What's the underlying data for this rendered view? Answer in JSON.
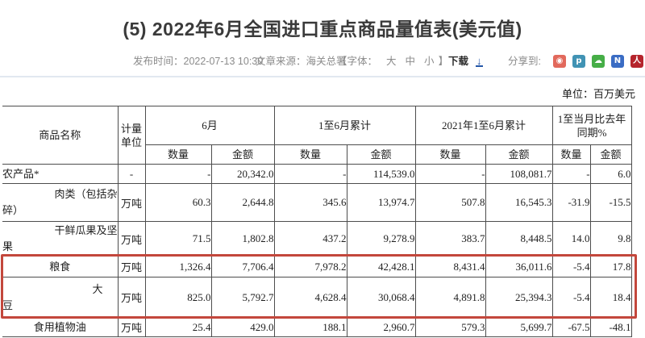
{
  "page": {
    "title": "(5) 2022年6月全国进口重点商品量值表(美元值)",
    "unit_note": "单位：百万美元"
  },
  "meta": {
    "publish": "发布时间：2022-07-13 10:30",
    "source": "文章来源：海关总署",
    "font_open": "【字体：",
    "font_sizes": [
      "大",
      "中",
      "小"
    ],
    "font_close": "】",
    "download": "下载",
    "download_icon": "↓",
    "share_label": "分享到:"
  },
  "share_icons": [
    {
      "name": "sina-weibo-icon",
      "bg": "#e2695c",
      "glyph": "◉"
    },
    {
      "name": "tencent-weibo-icon",
      "bg": "#4193b4",
      "glyph": "p"
    },
    {
      "name": "wechat-icon",
      "bg": "#46ae47",
      "glyph": "☁"
    },
    {
      "name": "qzone-icon",
      "bg": "#3a6cc4",
      "glyph": "N"
    },
    {
      "name": "renren-icon",
      "bg": "#b5242c",
      "glyph": "人"
    }
  ],
  "table": {
    "col_commodity": "商品名称",
    "col_unit": "计量单位",
    "groups": [
      "6月",
      "1至6月累计",
      "2021年1至6月累计",
      "1至当月比去年同期%"
    ],
    "sub": [
      "数量",
      "金额"
    ],
    "rows": [
      {
        "name_lines": [
          "农产品*"
        ],
        "name_align": "left",
        "unit": "-",
        "cells": [
          "-",
          "20,342.0",
          "-",
          "114,539.0",
          "-",
          "108,081.7",
          "-",
          "6.0"
        ],
        "highlight": false
      },
      {
        "name_lines": [
          "肉类（包括杂",
          "碎）"
        ],
        "name_align": "right",
        "unit": "万吨",
        "cells": [
          "60.3",
          "2,644.8",
          "345.6",
          "13,974.7",
          "507.8",
          "16,545.3",
          "-31.9",
          "-15.5"
        ],
        "highlight": false
      },
      {
        "name_lines": [
          "干鲜瓜果及坚",
          "果"
        ],
        "name_align": "right",
        "unit": "万吨",
        "cells": [
          "71.5",
          "1,802.8",
          "437.2",
          "9,278.9",
          "383.7",
          "8,448.5",
          "14.0",
          "9.8"
        ],
        "highlight": false
      },
      {
        "name_lines": [
          "粮食"
        ],
        "name_align": "center",
        "unit": "万吨",
        "cells": [
          "1,326.4",
          "7,706.4",
          "7,978.2",
          "42,428.1",
          "8,431.4",
          "36,011.6",
          "-5.4",
          "17.8"
        ],
        "highlight": true
      },
      {
        "name_lines": [
          "大",
          "豆"
        ],
        "name_align": "right",
        "name_pad": 18,
        "unit": "万吨",
        "cells": [
          "825.0",
          "5,792.7",
          "4,628.4",
          "30,068.4",
          "4,891.8",
          "25,394.3",
          "-5.4",
          "18.4"
        ],
        "highlight": true
      },
      {
        "name_lines": [
          "食用植物油"
        ],
        "name_align": "center",
        "unit": "万吨",
        "cells": [
          "25.4",
          "429.0",
          "188.1",
          "2,960.7",
          "579.3",
          "5,699.7",
          "-67.5",
          "-48.1"
        ],
        "highlight": false
      }
    ]
  },
  "colors": {
    "highlight_border": "#c3473c",
    "download_blue": "#2457a8",
    "divider": "#e2e8f0",
    "table_border": "#4d4d4d"
  }
}
